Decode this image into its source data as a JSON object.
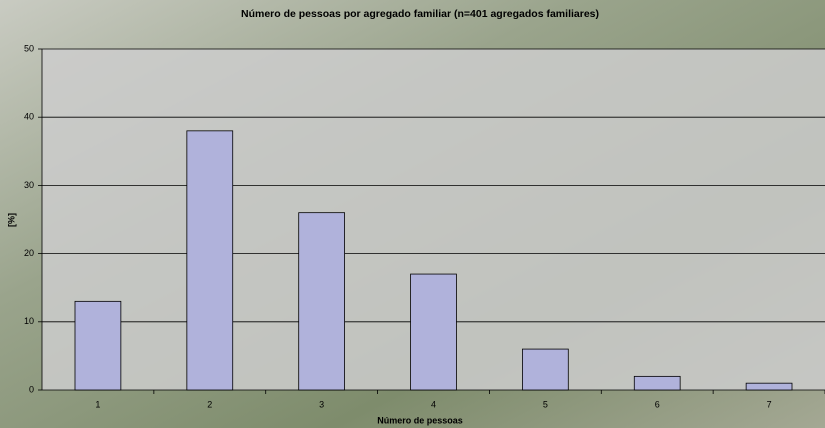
{
  "chart_data": {
    "type": "bar",
    "title": "Número de pessoas por agregado familiar (n=401 agregados familiares)",
    "x_label": "Número de pessoas",
    "y_label": "[%]",
    "categories": [
      "1",
      "2",
      "3",
      "4",
      "5",
      "6",
      "7"
    ],
    "values": [
      13,
      38,
      26,
      17,
      6,
      2,
      1
    ],
    "color": "#b0b2db",
    "ylim": [
      0,
      50
    ],
    "yticks": [
      0,
      10,
      20,
      30,
      40,
      50
    ],
    "grid": true
  }
}
